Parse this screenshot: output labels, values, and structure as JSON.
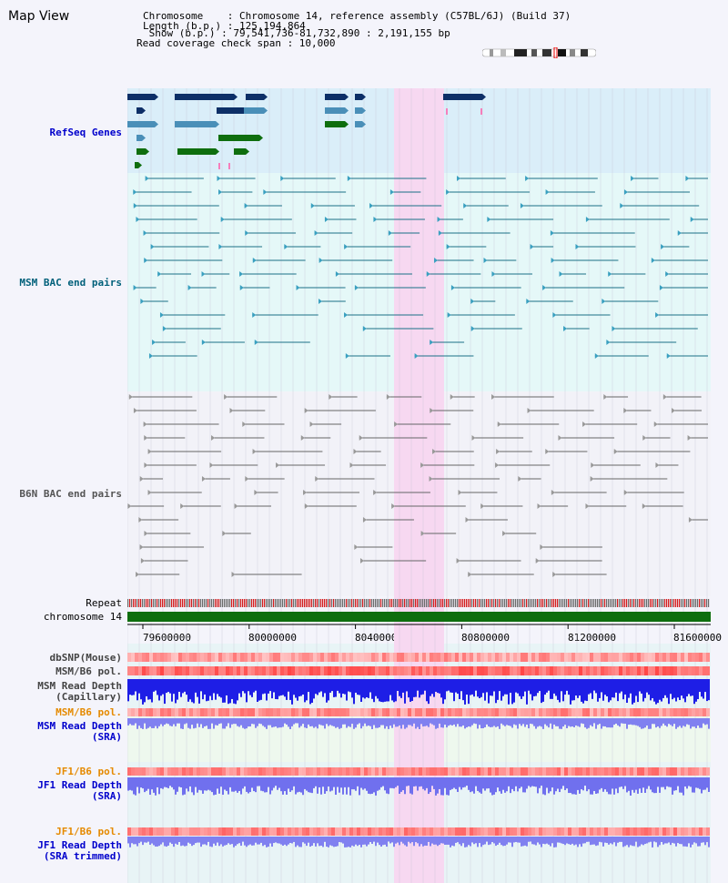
{
  "header": {
    "title": "Map View",
    "lines": [
      "Chromosome    : Chromosome 14, reference assembly (C57BL/6J) (Build 37)",
      "Length (b.p.) : 125,194,864",
      " Show (b.p.) : 79,541,736-81,732,890 : 2,191,155 bp",
      "Read coverage check span : 10,000"
    ]
  },
  "tracks": {
    "refseq": "RefSeq Genes",
    "msm_bac": "MSM BAC end pairs",
    "b6n_bac": "B6N BAC end pairs",
    "repeat": "Repeat",
    "chromosome": "chromosome 14",
    "dbsnp": "dbSNP(Mouse)",
    "msm_b6_pol_1": "MSM/B6 pol.",
    "msm_read_depth_cap_1": "MSM Read Depth",
    "msm_read_depth_cap_2": "(Capillary)",
    "msm_b6_pol_2": "MSM/B6 pol.",
    "msm_read_depth_sra_1": "MSM Read Depth",
    "msm_read_depth_sra_2": "(SRA)",
    "jf1_b6_pol_1": "JF1/B6 pol.",
    "jf1_read_depth_1": "JF1 Read Depth",
    "jf1_read_depth_2": "(SRA)",
    "jf1_b6_pol_2": "JF1/B6 pol.",
    "jf1_read_depth_trim_1": "JF1 Read Depth",
    "jf1_read_depth_trim_2": "(SRA trimmed)"
  },
  "axis": {
    "ticks": [
      "79600000",
      "80000000",
      "80400000",
      "80800000",
      "81200000",
      "81600000"
    ]
  },
  "colors": {
    "highlight": "#f7d8f1",
    "refseq_bg": "#daeef9",
    "msm_bg": "#e5f8f8",
    "dark_gene": "#0d2f67",
    "mid_gene": "#4a8fb8",
    "green_gene": "#0e6e0e",
    "label_blue": "#0000cc",
    "label_teal": "#00607a",
    "label_orange": "#e58a00"
  }
}
